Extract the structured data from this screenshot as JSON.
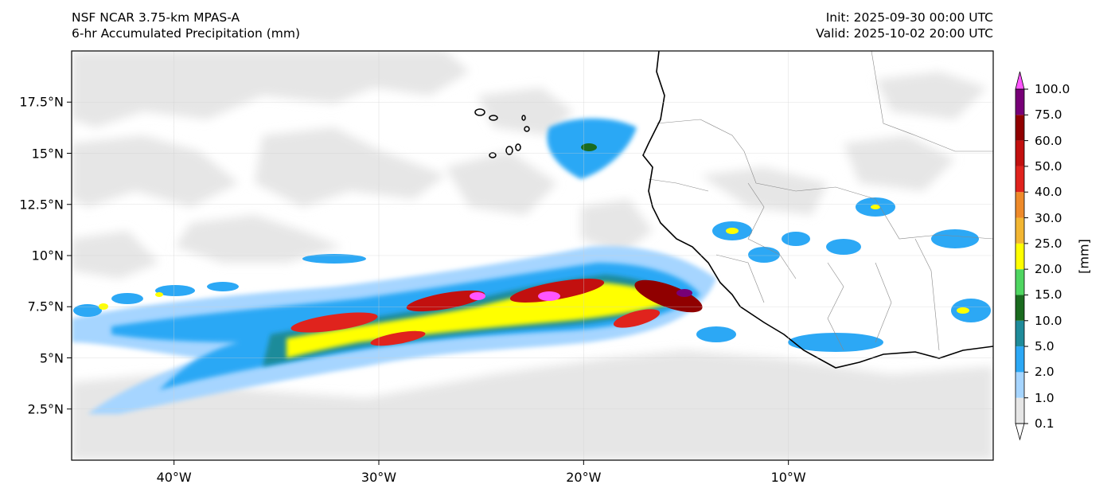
{
  "title": {
    "model": "NSF NCAR 3.75-km MPAS-A",
    "field": "6-hr Accumulated Precipitation (mm)",
    "init": "Init: 2025-09-30 00:00 UTC",
    "valid": "Valid: 2025-10-02 20:00 UTC"
  },
  "map": {
    "lon_range": [
      -45,
      0
    ],
    "lat_range": [
      0,
      20
    ],
    "lat_ticks": [
      {
        "value": 2.5,
        "label": "2.5°N"
      },
      {
        "value": 5,
        "label": "5°N"
      },
      {
        "value": 7.5,
        "label": "7.5°N"
      },
      {
        "value": 10,
        "label": "10°N"
      },
      {
        "value": 12.5,
        "label": "12.5°N"
      },
      {
        "value": 15,
        "label": "15°N"
      },
      {
        "value": 17.5,
        "label": "17.5°N"
      }
    ],
    "lon_ticks": [
      {
        "value": -40,
        "label": "40°W"
      },
      {
        "value": -30,
        "label": "30°W"
      },
      {
        "value": -20,
        "label": "20°W"
      },
      {
        "value": -10,
        "label": "10°W"
      }
    ],
    "gridlines": true
  },
  "colorbar": {
    "title": "[mm]",
    "levels": [
      "0.1",
      "1.0",
      "2.0",
      "5.0",
      "10.0",
      "15.0",
      "20.0",
      "25.0",
      "30.0",
      "40.0",
      "50.0",
      "60.0",
      "75.0",
      "100.0"
    ],
    "colors": [
      "#e6e6e6",
      "#a6d5ff",
      "#2ca8f5",
      "#1f8b9a",
      "#1a6b1f",
      "#4fd661",
      "#ffff00",
      "#f2b632",
      "#ee8a2a",
      "#e0231d",
      "#c2100f",
      "#900000",
      "#770077",
      "#ff55ff"
    ],
    "extend": "both"
  },
  "features": {
    "coastline_color": "#000000",
    "border_color": "#888888",
    "band_color": "#2ca8f5",
    "ocean_color": "#ffffff"
  }
}
